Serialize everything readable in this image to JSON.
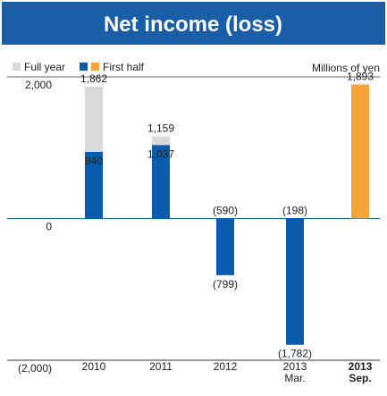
{
  "chart_data": {
    "type": "bar",
    "title": "Net income (loss)",
    "unit_label": "Millions of yen",
    "categories": [
      [
        "2010"
      ],
      [
        "2011"
      ],
      [
        "2012"
      ],
      [
        "2013",
        "Mar."
      ],
      [
        "2013",
        "Sep."
      ]
    ],
    "series": [
      {
        "name": "Full year",
        "color": "#d9d9d9",
        "values": [
          1862,
          1159,
          -590,
          -198,
          null
        ],
        "value_labels": [
          "1,862",
          "1,159",
          "(590)",
          "(198)",
          null
        ]
      },
      {
        "name": "First half",
        "color": "#0b5cad",
        "colors": [
          "#0b5cad",
          "#0b5cad",
          "#0b5cad",
          "#0b5cad",
          "#f5a43a"
        ],
        "legend_colors": [
          "#0b5cad",
          "#f5a43a"
        ],
        "values": [
          940,
          1037,
          -799,
          -1782,
          1893
        ],
        "value_labels": [
          "940",
          "1,037",
          "(799)",
          "(1,782)",
          "1,893"
        ]
      }
    ],
    "ylim": [
      -2000,
      2000
    ],
    "yticks": [
      {
        "value": -2000,
        "label": "(2,000)"
      },
      0,
      {
        "value": 2000,
        "label": "2,000"
      }
    ]
  }
}
